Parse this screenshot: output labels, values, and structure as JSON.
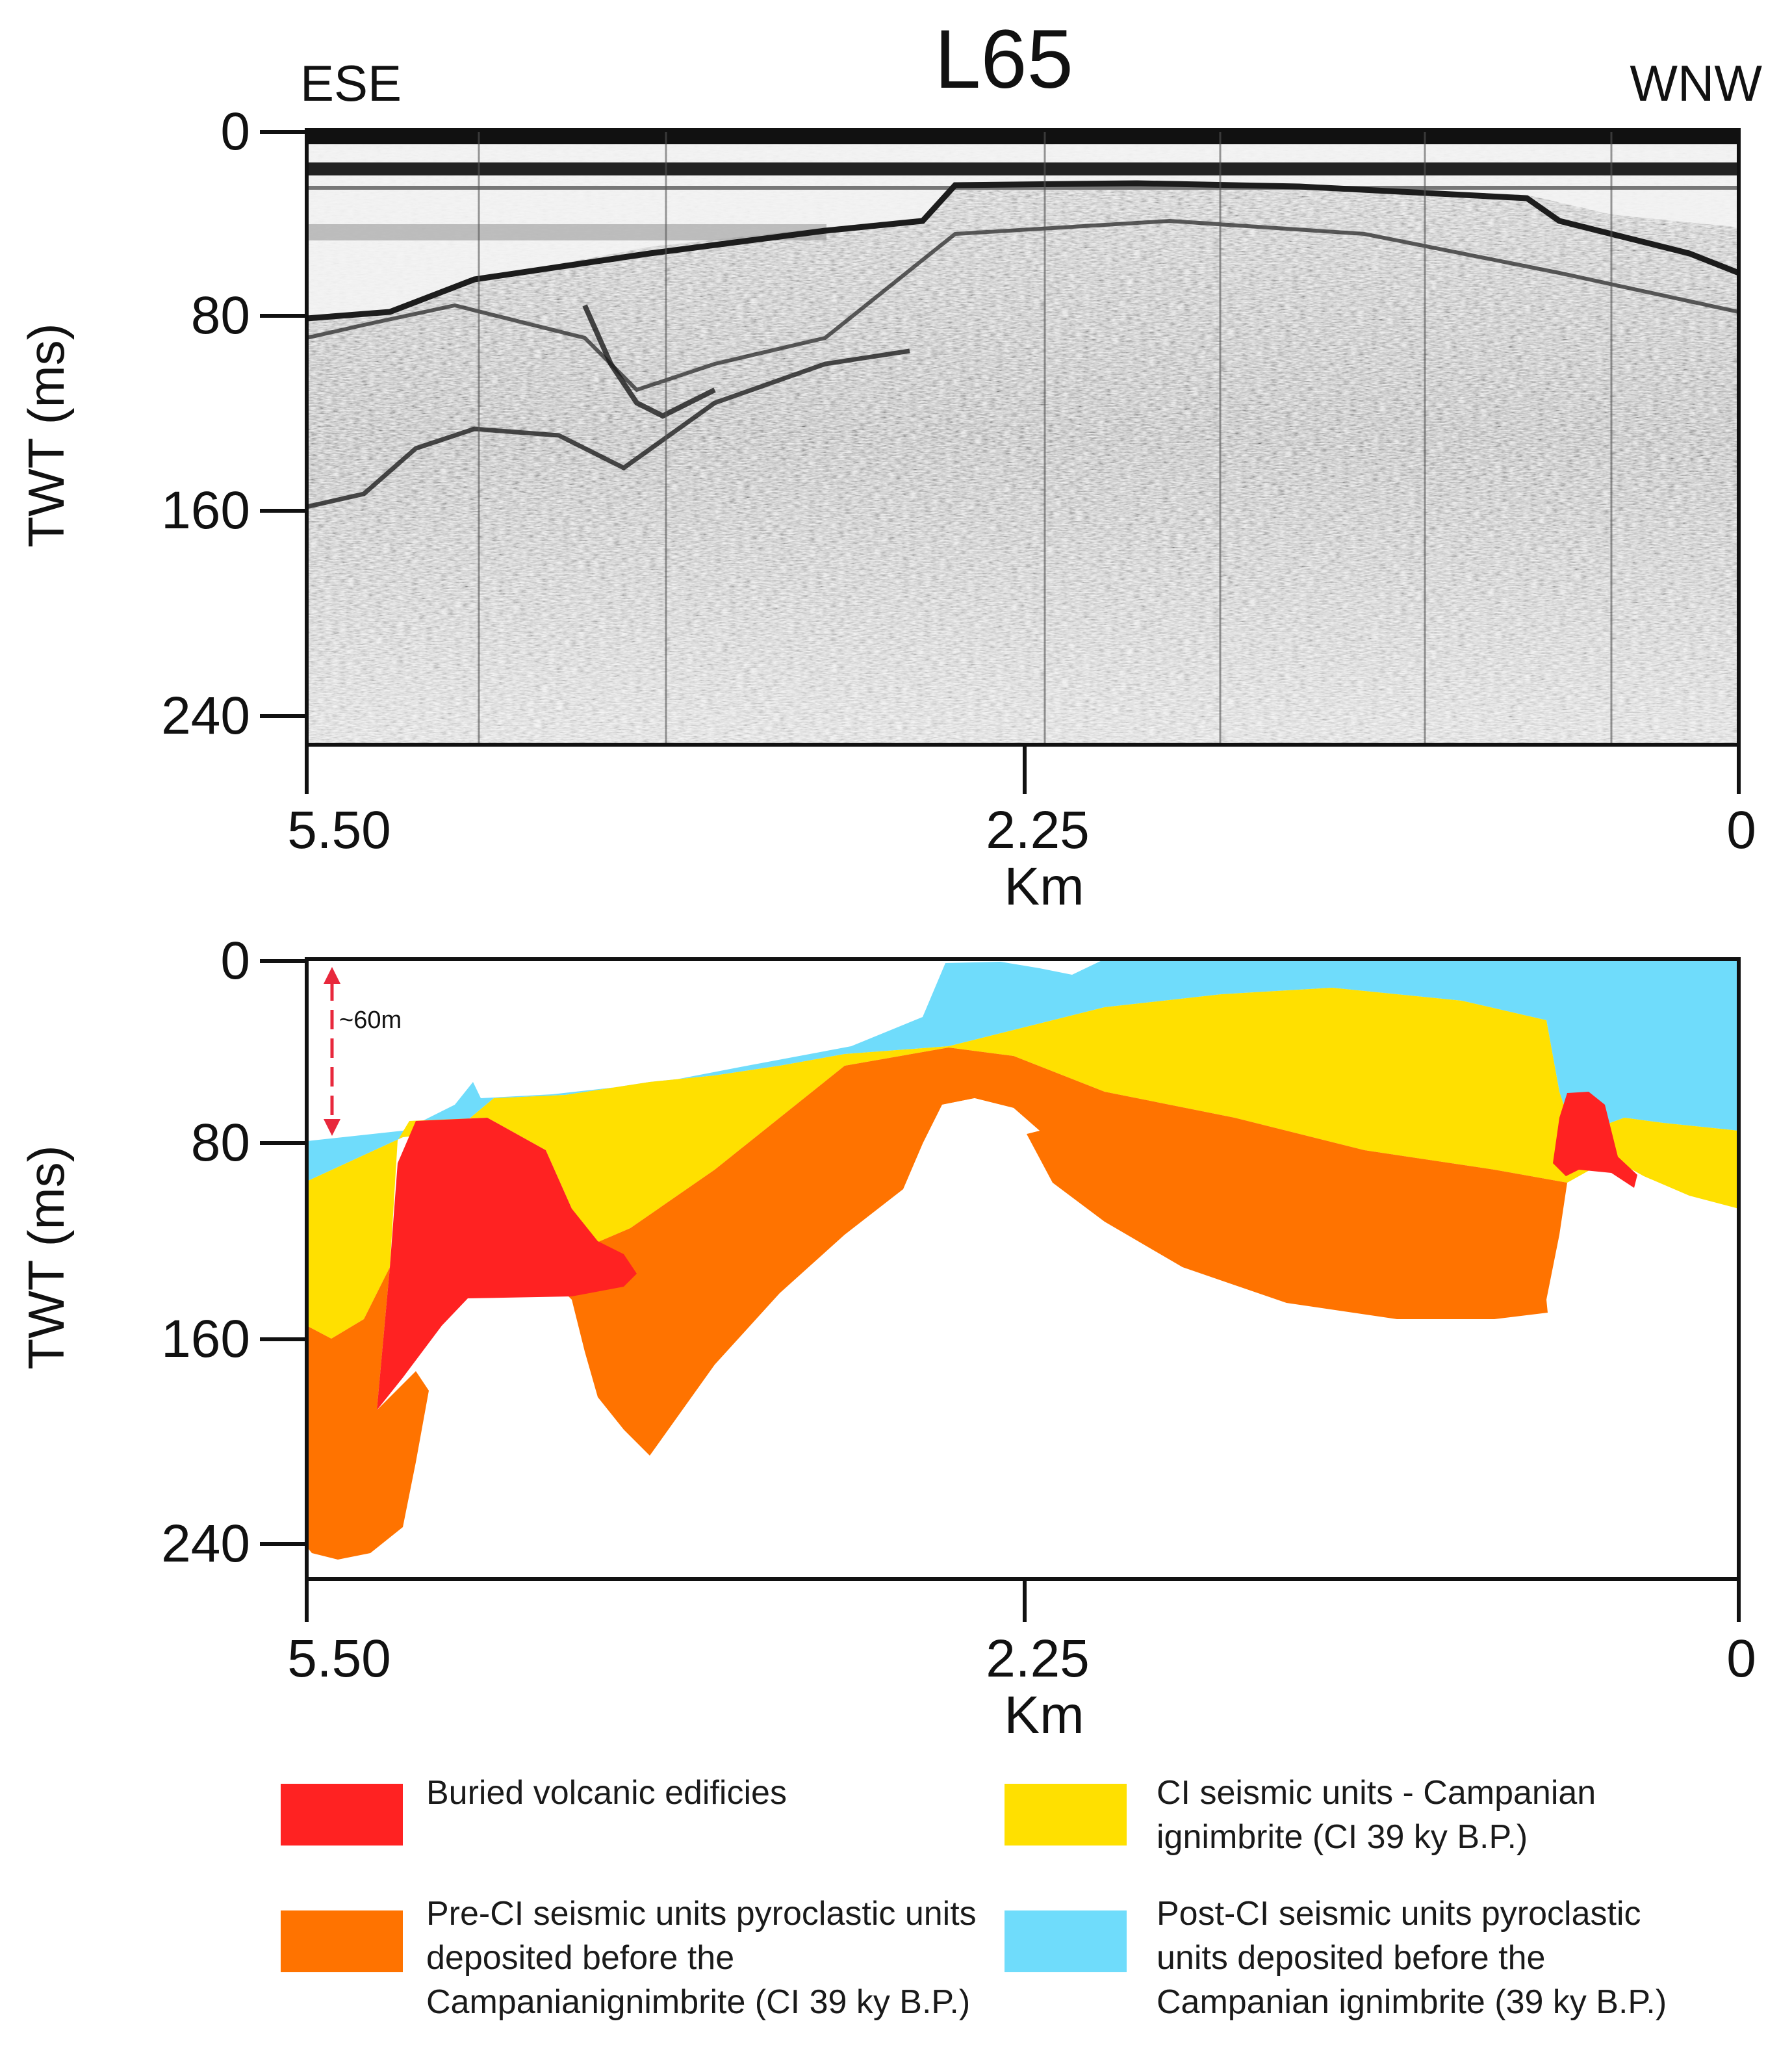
{
  "title": "L65",
  "directions": {
    "left": "ESE",
    "right": "WNW"
  },
  "axes": {
    "y_label": "TWT (ms)",
    "x_label": "Km",
    "y_ticks": [
      "0",
      "80",
      "160",
      "240"
    ],
    "x_ticks": [
      "5.50",
      "2.25",
      "0"
    ]
  },
  "chart_data": {
    "type": "seismic-profile",
    "x": {
      "label": "Km",
      "range": [
        5.5,
        0
      ],
      "ticks": [
        5.5,
        2.25,
        0
      ]
    },
    "y": {
      "label": "TWT (ms)",
      "range": [
        0,
        265
      ],
      "ticks": [
        0,
        80,
        160,
        240
      ]
    }
  },
  "annotation": {
    "thickness": "~60m"
  },
  "colors": {
    "volcanic": "#ff2222",
    "pre_ci": "#ff7300",
    "ci": "#ffe000",
    "post_ci": "#6fdcfb",
    "arrow": "#e8283c"
  },
  "legend": [
    {
      "key": "volcanic",
      "lines": [
        "Buried volcanic edificies"
      ]
    },
    {
      "key": "ci",
      "lines": [
        "CI seismic units - Campanian",
        "ignimbrite (CI 39 ky B.P.)"
      ]
    },
    {
      "key": "pre_ci",
      "lines": [
        "Pre-CI seismic units pyroclastic units",
        "deposited before the",
        "Campanianignimbrite (CI 39 ky B.P.)"
      ]
    },
    {
      "key": "post_ci",
      "lines": [
        "Post-CI seismic units pyroclastic",
        "units deposited before the",
        "Campanian ignimbrite (39 ky B.P.)"
      ]
    }
  ]
}
